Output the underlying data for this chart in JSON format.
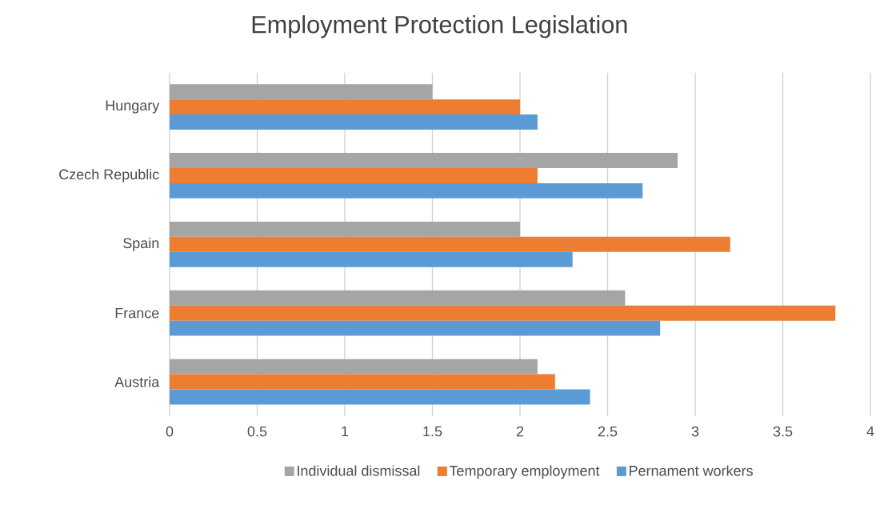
{
  "chart_data": {
    "type": "bar",
    "orientation": "horizontal",
    "title": "Employment Protection Legislation",
    "categories": [
      "Hungary",
      "Czech Republic",
      "Spain",
      "France",
      "Austria"
    ],
    "series": [
      {
        "name": "Individual dismissal",
        "color": "#a5a5a5",
        "values": [
          1.5,
          2.9,
          2.0,
          2.6,
          2.1
        ]
      },
      {
        "name": "Temporary employment",
        "color": "#ed7d31",
        "values": [
          2.0,
          2.1,
          3.2,
          3.8,
          2.2
        ]
      },
      {
        "name": "Pernament workers",
        "color": "#5b9bd5",
        "values": [
          2.1,
          2.7,
          2.3,
          2.8,
          2.4
        ]
      }
    ],
    "xlim": [
      0,
      4
    ],
    "xticks": [
      0,
      0.5,
      1,
      1.5,
      2,
      2.5,
      3,
      3.5,
      4
    ],
    "grid": "x",
    "legend": "bottom"
  }
}
